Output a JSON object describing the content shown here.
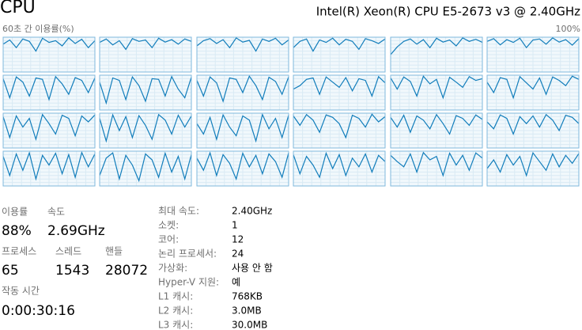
{
  "header": {
    "title": "CPU",
    "processor": "Intel(R) Xeon(R) CPU E5-2673 v3 @ 2.40GHz"
  },
  "graph": {
    "label": "60초 간 이용률(%)",
    "max_label": "100%",
    "ylim": [
      0,
      100
    ],
    "color": "#117dbb",
    "cores": [
      [
        80,
        92,
        70,
        95,
        88,
        60,
        97,
        85,
        90,
        75,
        98,
        82,
        94,
        70,
        90
      ],
      [
        85,
        95,
        78,
        90,
        65,
        96,
        88,
        92,
        70,
        97,
        86,
        93,
        80,
        95,
        88
      ],
      [
        75,
        90,
        96,
        82,
        93,
        70,
        98,
        86,
        91,
        60,
        95,
        88,
        97,
        78,
        92
      ],
      [
        70,
        88,
        95,
        60,
        92,
        85,
        97,
        78,
        94,
        88,
        65,
        96,
        90,
        82,
        95
      ],
      [
        50,
        72,
        88,
        95,
        80,
        93,
        70,
        97,
        86,
        92,
        75,
        98,
        88,
        94,
        85
      ],
      [
        88,
        96,
        78,
        93,
        85,
        97,
        70,
        92,
        95,
        80,
        98,
        86,
        93,
        77,
        96
      ],
      [
        90,
        35,
        95,
        80,
        40,
        92,
        88,
        30,
        96,
        75,
        45,
        93,
        85,
        50,
        92
      ],
      [
        80,
        20,
        92,
        85,
        30,
        95,
        70,
        25,
        90,
        88,
        40,
        96,
        60,
        35,
        94
      ],
      [
        85,
        40,
        95,
        78,
        25,
        92,
        88,
        50,
        97,
        70,
        30,
        94,
        82,
        45,
        95
      ],
      [
        60,
        70,
        88,
        92,
        45,
        95,
        80,
        65,
        93,
        55,
        90,
        85,
        40,
        96,
        78
      ],
      [
        92,
        60,
        95,
        82,
        40,
        97,
        75,
        88,
        35,
        94,
        80,
        65,
        96,
        85,
        90
      ],
      [
        80,
        50,
        93,
        88,
        35,
        96,
        78,
        60,
        92,
        45,
        95,
        85,
        70,
        97,
        88
      ],
      [
        90,
        30,
        92,
        60,
        85,
        25,
        96,
        70,
        40,
        94,
        85,
        35,
        92,
        75,
        95
      ],
      [
        85,
        20,
        95,
        50,
        90,
        30,
        93,
        65,
        25,
        96,
        80,
        40,
        94,
        60,
        92
      ],
      [
        70,
        40,
        88,
        25,
        95,
        60,
        35,
        92,
        80,
        20,
        96,
        55,
        85,
        30,
        94
      ],
      [
        92,
        65,
        96,
        80,
        45,
        95,
        88,
        70,
        30,
        94,
        85,
        60,
        97,
        75,
        90
      ],
      [
        88,
        60,
        94,
        45,
        92,
        80,
        55,
        96,
        70,
        40,
        93,
        85,
        65,
        95,
        82
      ],
      [
        75,
        55,
        95,
        85,
        40,
        90,
        70,
        92,
        60,
        96,
        80,
        50,
        94,
        88,
        70
      ],
      [
        85,
        30,
        92,
        45,
        95,
        20,
        88,
        60,
        94,
        35,
        90,
        25,
        96,
        55,
        92
      ],
      [
        30,
        80,
        95,
        20,
        88,
        60,
        15,
        92,
        75,
        25,
        94,
        40,
        85,
        20,
        90
      ],
      [
        80,
        45,
        95,
        30,
        90,
        65,
        20,
        94,
        55,
        88,
        35,
        92,
        70,
        25,
        95
      ],
      [
        90,
        35,
        85,
        60,
        25,
        94,
        50,
        90,
        30,
        80,
        55,
        92,
        40,
        88,
        70
      ],
      [
        88,
        70,
        55,
        92,
        40,
        96,
        75,
        85,
        30,
        94,
        60,
        88,
        45,
        95,
        80
      ],
      [
        50,
        75,
        40,
        90,
        60,
        85,
        30,
        95,
        70,
        45,
        92,
        55,
        88,
        65,
        93
      ]
    ]
  },
  "stats": {
    "utilization": {
      "label": "이용률",
      "value": "88%"
    },
    "speed": {
      "label": "속도",
      "value": "2.69GHz"
    },
    "processes": {
      "label": "프로세스",
      "value": "65"
    },
    "threads": {
      "label": "스레드",
      "value": "1543"
    },
    "handles": {
      "label": "핸들",
      "value": "28072"
    },
    "uptime": {
      "label": "작동 시간",
      "value": "0:00:30:16"
    }
  },
  "details": [
    [
      "최대 속도:",
      "2.40GHz"
    ],
    [
      "소켓:",
      "1"
    ],
    [
      "코어:",
      "12"
    ],
    [
      "논리 프로세서:",
      "24"
    ],
    [
      "가상화:",
      "사용 안 함"
    ],
    [
      "Hyper-V 지원:",
      "예"
    ],
    [
      "L1 캐시:",
      "768KB"
    ],
    [
      "L2 캐시:",
      "3.0MB"
    ],
    [
      "L3 캐시:",
      "30.0MB"
    ]
  ]
}
